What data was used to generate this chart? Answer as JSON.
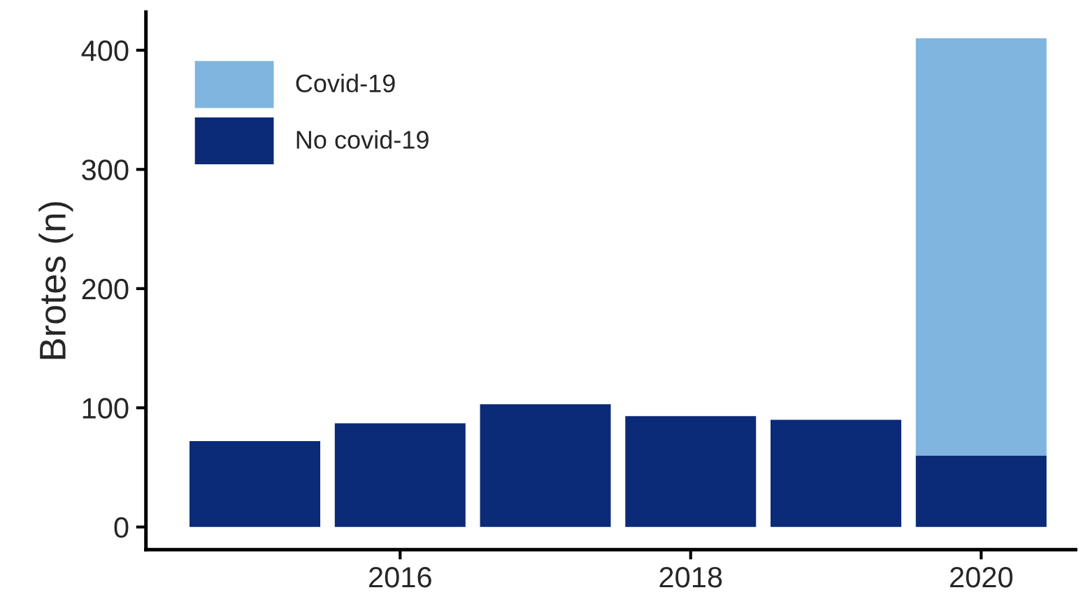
{
  "chart_data": {
    "type": "bar",
    "stacked": true,
    "ylabel": "Brotes (n)",
    "x": [
      2015,
      2016,
      2017,
      2018,
      2019,
      2020
    ],
    "series": [
      {
        "name": "No covid-19",
        "color": "#0b2a78",
        "values": [
          72,
          87,
          103,
          93,
          90,
          60
        ]
      },
      {
        "name": "Covid-19",
        "color": "#7fb5de",
        "values": [
          0,
          0,
          0,
          0,
          0,
          350
        ]
      }
    ],
    "xlim": [
      2014.25,
      2020.65
    ],
    "xticks": [
      2016,
      2018,
      2020
    ],
    "ylim": [
      -19,
      432
    ],
    "yticks": [
      0,
      100,
      200,
      300,
      400
    ],
    "grid": false,
    "legend": "top left"
  }
}
